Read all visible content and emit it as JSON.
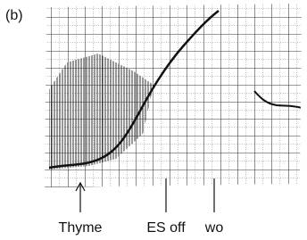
{
  "panel_label": "(b)",
  "markers": [
    {
      "label": "Thyme"
    },
    {
      "label": "ES off"
    },
    {
      "label": "wo"
    }
  ]
}
